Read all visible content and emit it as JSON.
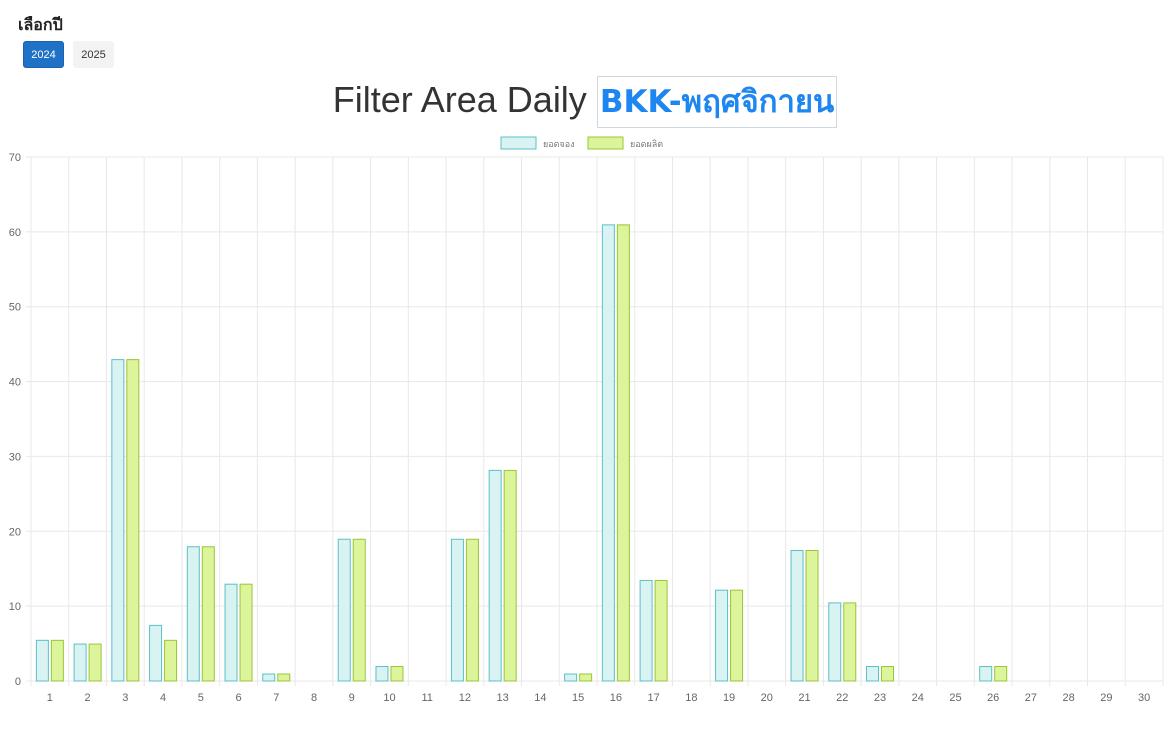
{
  "year_selector": {
    "heading": "เลือกปี",
    "buttons": [
      {
        "label": "2024",
        "active": true
      },
      {
        "label": "2025",
        "active": false
      }
    ]
  },
  "title": {
    "prefix": "Filter Area Daily",
    "highlight": "BKK-พฤศจิกายน"
  },
  "colors": {
    "series1_fill": "#d9f2f2",
    "series1_stroke": "#5bc0c8",
    "series2_fill": "#dcf49a",
    "series2_stroke": "#9cc43a",
    "grid": "#e8e8e8",
    "active_button": "#1f72c6"
  },
  "chart_data": {
    "type": "bar",
    "categories": [
      "1",
      "2",
      "3",
      "4",
      "5",
      "6",
      "7",
      "8",
      "9",
      "10",
      "11",
      "12",
      "13",
      "14",
      "15",
      "16",
      "17",
      "18",
      "19",
      "20",
      "21",
      "22",
      "23",
      "24",
      "25",
      "26",
      "27",
      "28",
      "29",
      "30"
    ],
    "series": [
      {
        "name": "ยอดจอง",
        "values": [
          5.5,
          5,
          43,
          7.5,
          18,
          13,
          1,
          0,
          19,
          2,
          0,
          19,
          28.2,
          0,
          1,
          61,
          13.5,
          0,
          12.2,
          0,
          17.5,
          10.5,
          2,
          0,
          0,
          2,
          0,
          0,
          0,
          0
        ]
      },
      {
        "name": "ยอดผลิต",
        "values": [
          5.5,
          5,
          43,
          5.5,
          18,
          13,
          1,
          0,
          19,
          2,
          0,
          19,
          28.2,
          0,
          1,
          61,
          13.5,
          0,
          12.2,
          0,
          17.5,
          10.5,
          2,
          0,
          0,
          2,
          0,
          0,
          0,
          0
        ]
      }
    ],
    "ylim": [
      0,
      70
    ],
    "yticks": [
      0,
      10,
      20,
      30,
      40,
      50,
      60,
      70
    ],
    "grid": true,
    "legend_position": "top-center"
  }
}
